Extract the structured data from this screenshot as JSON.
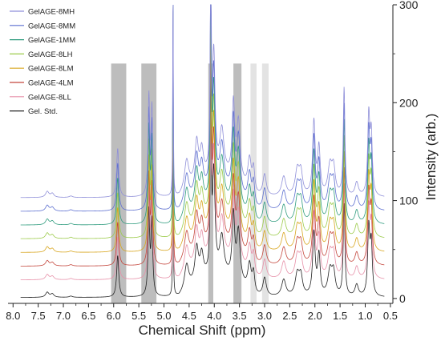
{
  "chart_data": {
    "type": "line",
    "title": "",
    "xlabel": "Chemical Shift (ppm)",
    "ylabel": "Intensity (arb.)",
    "xlim": [
      8.1,
      0.45
    ],
    "x_reversed": true,
    "ylim": [
      -5,
      300
    ],
    "x_ticks": [
      "8.0",
      "7.5",
      "7.0",
      "6.5",
      "6.0",
      "5.5",
      "5.0",
      "4.5",
      "4.0",
      "3.5",
      "3.0",
      "2.5",
      "2.0",
      "1.5",
      "1.0",
      "0.5"
    ],
    "y_ticks": [
      "0",
      "100",
      "200",
      "300"
    ],
    "y_axis_side": "right",
    "grid": false,
    "legend_position": "top-left",
    "highlight_regions": [
      {
        "x": [
          6.05,
          5.75
        ],
        "shade": "#bdbdbd"
      },
      {
        "x": [
          5.45,
          5.15
        ],
        "shade": "#bdbdbd"
      },
      {
        "x": [
          4.12,
          4.02
        ],
        "shade": "#bdbdbd"
      },
      {
        "x": [
          3.62,
          3.46
        ],
        "shade": "#bdbdbd"
      },
      {
        "x": [
          3.28,
          3.16
        ],
        "shade": "#e3e3e3"
      },
      {
        "x": [
          3.05,
          2.92
        ],
        "shade": "#e3e3e3"
      }
    ],
    "series": [
      {
        "name": "GelAGE-8MH",
        "color": "#8f8fd9",
        "baseline": 103
      },
      {
        "name": "GelAGE-8MM",
        "color": "#5c6fd0",
        "baseline": 89
      },
      {
        "name": "GelAGE-1MM",
        "color": "#2f9c7e",
        "baseline": 75
      },
      {
        "name": "GelAGE-8LH",
        "color": "#9ccb4a",
        "baseline": 61
      },
      {
        "name": "GelAGE-8LM",
        "color": "#d8a51c",
        "baseline": 47
      },
      {
        "name": "GelAGE-4LM",
        "color": "#c4463c",
        "baseline": 33
      },
      {
        "name": "GelAGE-8LL",
        "color": "#e78fa8",
        "baseline": 19
      },
      {
        "name": "Gel. Std.",
        "color": "#222222",
        "baseline": 1
      }
    ],
    "peaks": [
      {
        "x": 7.32,
        "h": 6,
        "w": 0.04
      },
      {
        "x": 7.22,
        "h": 4,
        "w": 0.04
      },
      {
        "x": 6.85,
        "h": 1.5,
        "w": 0.04
      },
      {
        "x": 5.92,
        "h": 50,
        "w": 0.025
      },
      {
        "x": 5.3,
        "h": 100,
        "w": 0.02
      },
      {
        "x": 5.24,
        "h": 88,
        "w": 0.02
      },
      {
        "x": 4.82,
        "h": 260,
        "w": 0.006
      },
      {
        "x": 4.55,
        "h": 30,
        "w": 0.05
      },
      {
        "x": 4.35,
        "h": 40,
        "w": 0.04
      },
      {
        "x": 4.25,
        "h": 28,
        "w": 0.04
      },
      {
        "x": 4.07,
        "h": 230,
        "w": 0.012
      },
      {
        "x": 4.01,
        "h": 120,
        "w": 0.03
      },
      {
        "x": 3.85,
        "h": 45,
        "w": 0.05
      },
      {
        "x": 3.62,
        "h": 75,
        "w": 0.03
      },
      {
        "x": 3.52,
        "h": 60,
        "w": 0.04
      },
      {
        "x": 3.3,
        "h": 32,
        "w": 0.04
      },
      {
        "x": 3.22,
        "h": 25,
        "w": 0.03
      },
      {
        "x": 3.0,
        "h": 22,
        "w": 0.04
      },
      {
        "x": 2.62,
        "h": 20,
        "w": 0.05
      },
      {
        "x": 2.35,
        "h": 26,
        "w": 0.05
      },
      {
        "x": 2.28,
        "h": 22,
        "w": 0.04
      },
      {
        "x": 2.02,
        "h": 75,
        "w": 0.03
      },
      {
        "x": 1.92,
        "h": 48,
        "w": 0.03
      },
      {
        "x": 1.7,
        "h": 30,
        "w": 0.05
      },
      {
        "x": 1.63,
        "h": 26,
        "w": 0.04
      },
      {
        "x": 1.42,
        "h": 110,
        "w": 0.02
      },
      {
        "x": 1.17,
        "h": 14,
        "w": 0.04
      },
      {
        "x": 0.93,
        "h": 80,
        "w": 0.025
      },
      {
        "x": 0.88,
        "h": 60,
        "w": 0.025
      }
    ],
    "hump": {
      "from": 4.7,
      "to": 3.2,
      "h": 22
    }
  }
}
